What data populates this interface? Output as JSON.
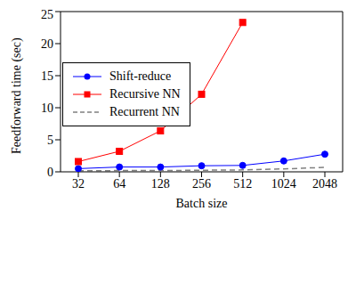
{
  "chart_data": {
    "type": "line",
    "x_label": "Batch size",
    "y_label": "Feedforward time (sec)",
    "categories": [
      "32",
      "64",
      "128",
      "256",
      "512",
      "1024",
      "2048"
    ],
    "series": [
      {
        "name": "Shift-reduce",
        "color": "#0000ff",
        "marker": "circle",
        "line_style": "solid",
        "values": [
          0.5,
          0.75,
          0.75,
          0.95,
          1.0,
          1.7,
          2.75
        ]
      },
      {
        "name": "Recursive NN",
        "color": "#ff0000",
        "marker": "square",
        "line_style": "solid",
        "values": [
          1.6,
          3.2,
          6.4,
          12.1,
          23.3,
          null,
          null
        ]
      },
      {
        "name": "Recurrent NN",
        "color": "#808080",
        "marker": "none",
        "line_style": "dashed",
        "values": [
          0.15,
          0.2,
          0.2,
          0.25,
          0.3,
          0.45,
          0.7
        ]
      }
    ],
    "ylim": [
      0,
      25
    ],
    "yticks": [
      0,
      5,
      10,
      15,
      20,
      25
    ],
    "grid": false,
    "legend": "upper left"
  }
}
